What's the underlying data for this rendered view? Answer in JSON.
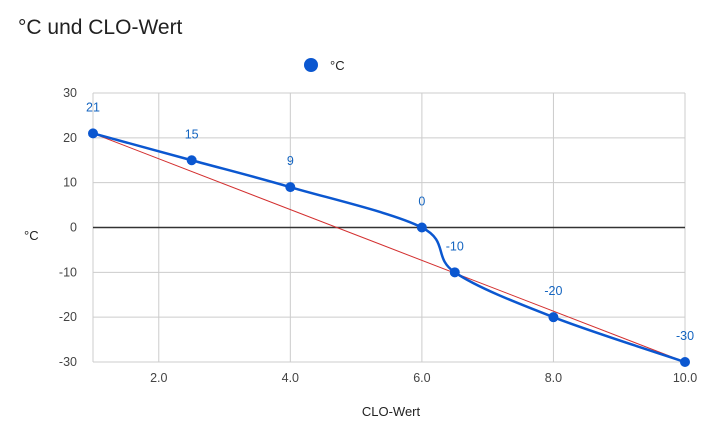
{
  "chart_data": {
    "type": "line",
    "title": "°C und CLO-Wert",
    "xlabel": "CLO-Wert",
    "ylabel": "°C",
    "xlim": [
      1.0,
      10.0
    ],
    "ylim": [
      -30,
      30
    ],
    "x_ticks": [
      "2.0",
      "4.0",
      "6.0",
      "8.0",
      "10.0"
    ],
    "x_tick_values": [
      2,
      4,
      6,
      8,
      10
    ],
    "y_ticks": [
      "30",
      "20",
      "10",
      "0",
      "-10",
      "-20",
      "-30"
    ],
    "y_tick_values": [
      30,
      20,
      10,
      0,
      -10,
      -20,
      -30
    ],
    "legend_position": "top",
    "series": [
      {
        "name": "°C",
        "color": "#0b57d0",
        "x": [
          1.0,
          2.5,
          4.0,
          6.0,
          6.5,
          8.0,
          10.0
        ],
        "values": [
          21,
          15,
          9,
          0,
          -10,
          -20,
          -30
        ],
        "labels": [
          "21",
          "15",
          "9",
          "0",
          "-10",
          "-20",
          "-30"
        ]
      }
    ],
    "trendline": {
      "color": "#d32f2f",
      "from": [
        1.0,
        21
      ],
      "to": [
        10.0,
        -30
      ]
    }
  }
}
